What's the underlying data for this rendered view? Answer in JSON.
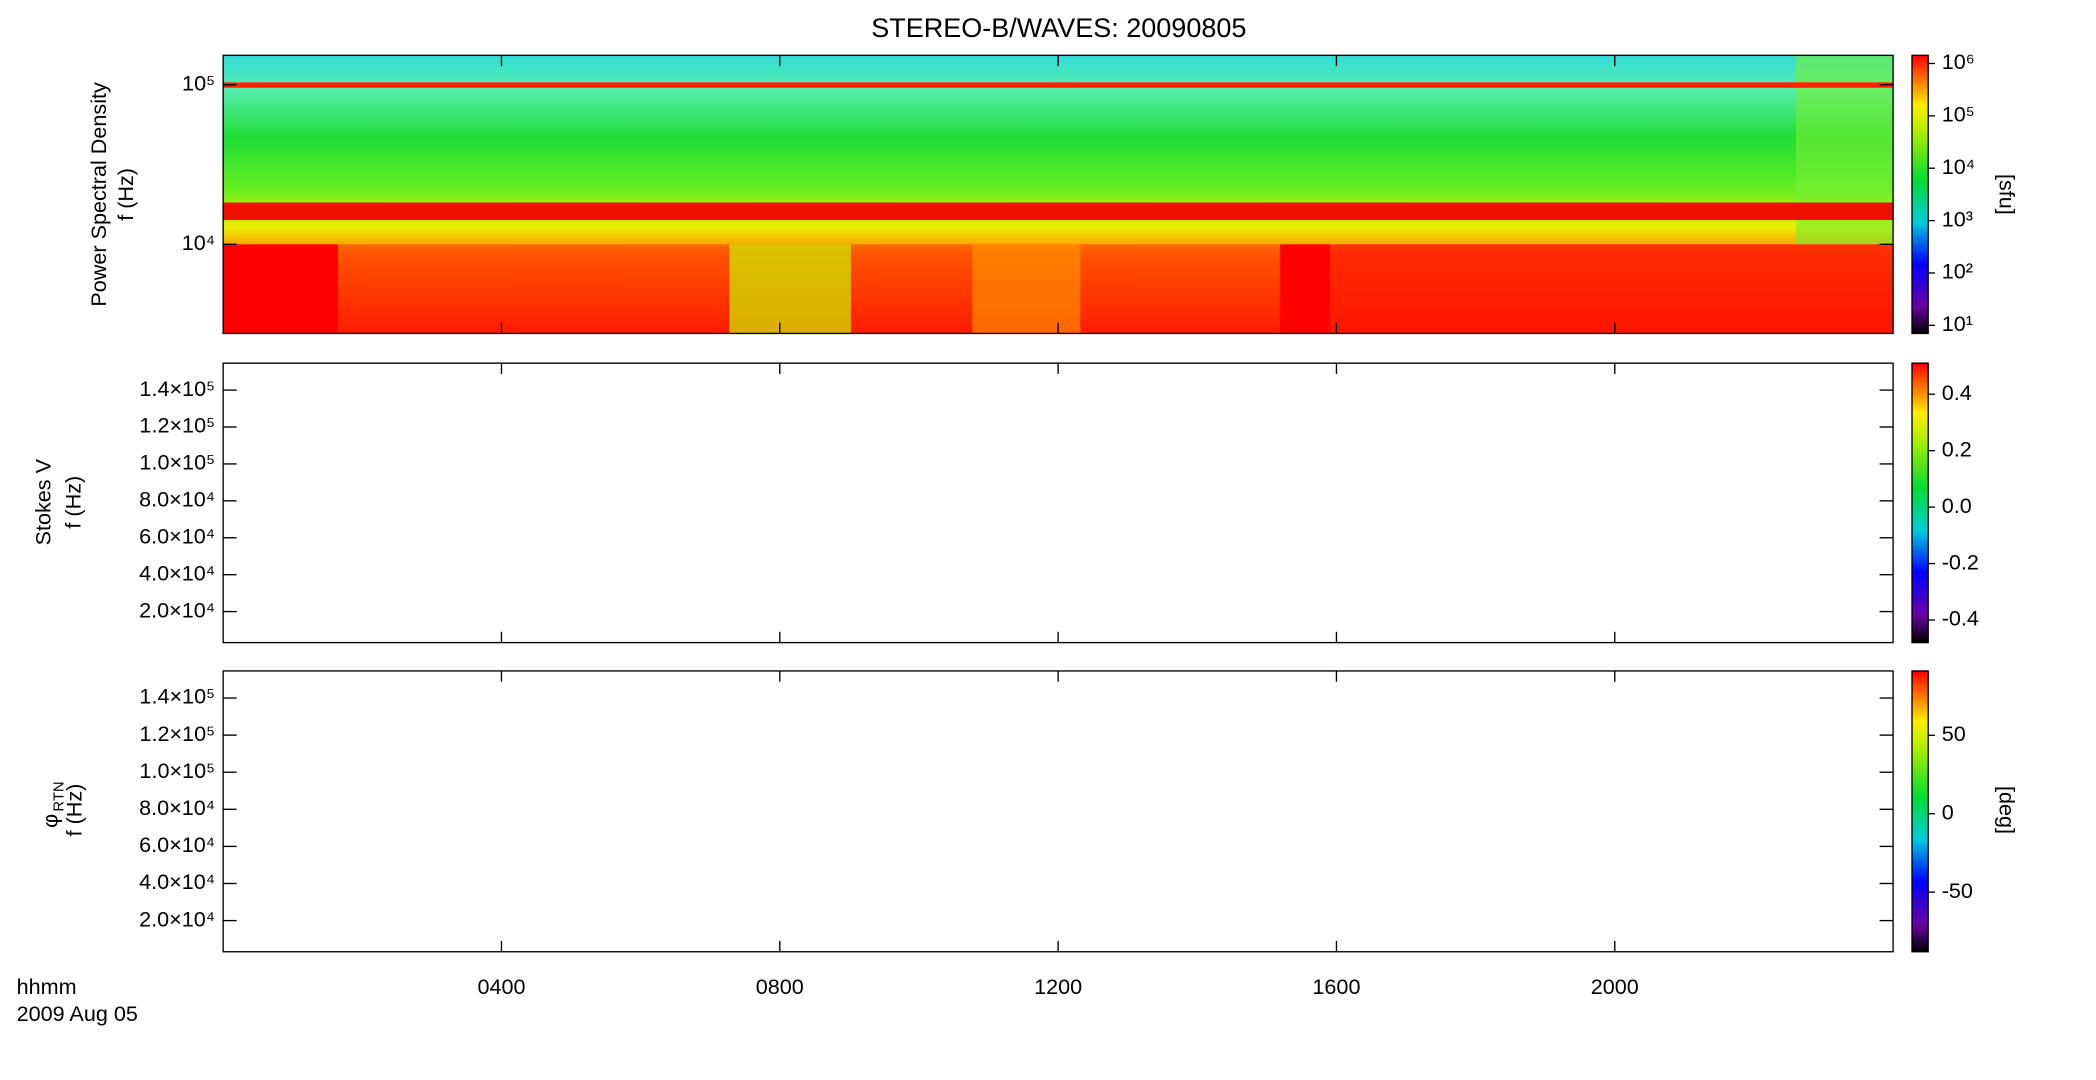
{
  "chart_data": {
    "type": "spectrogram",
    "title": "STEREO-B/WAVES: 20090805",
    "x_label": "hhmm",
    "date": "2009 Aug 05",
    "xlim": [
      0,
      24
    ],
    "xticks": [
      {
        "value": 4,
        "label": "0400"
      },
      {
        "value": 8,
        "label": "0800"
      },
      {
        "value": 12,
        "label": "1200"
      },
      {
        "value": 16,
        "label": "1600"
      },
      {
        "value": 20,
        "label": "2000"
      }
    ],
    "panels": [
      {
        "ylabel": "Power Spectral Density",
        "ylabel2": "f (Hz)",
        "yscale": "log",
        "ylim": [
          2760,
          153000
        ],
        "yticks": [
          {
            "value": 10000,
            "label": "10⁴"
          },
          {
            "value": 100000,
            "label": "10⁵"
          }
        ],
        "colorbar": {
          "scale": "log",
          "lim": [
            7,
            1430000
          ],
          "label": "[sfu]",
          "ticks": [
            {
              "value": 10,
              "label": "10¹"
            },
            {
              "value": 100,
              "label": "10²"
            },
            {
              "value": 1000,
              "label": "10³"
            },
            {
              "value": 10000,
              "label": "10⁴"
            },
            {
              "value": 100000,
              "label": "10⁵"
            },
            {
              "value": 1000000,
              "label": "10⁶"
            }
          ]
        }
      },
      {
        "ylabel": "Stokes V",
        "ylabel2": "f (Hz)",
        "yscale": "linear",
        "ylim": [
          3200,
          154600
        ],
        "yticks": [
          {
            "value": 20000,
            "label": "2.0×10⁴"
          },
          {
            "value": 40000,
            "label": "4.0×10⁴"
          },
          {
            "value": 60000,
            "label": "6.0×10⁴"
          },
          {
            "value": 80000,
            "label": "8.0×10⁴"
          },
          {
            "value": 100000,
            "label": "1.0×10⁵"
          },
          {
            "value": 120000,
            "label": "1.2×10⁵"
          },
          {
            "value": 140000,
            "label": "1.4×10⁵"
          }
        ],
        "colorbar": {
          "scale": "linear",
          "lim": [
            -0.48,
            0.51
          ],
          "ticks": [
            -0.4,
            -0.2,
            {
              "value": 0,
              "label": "0.0"
            },
            0.2,
            0.4
          ]
        }
      },
      {
        "ylabel": "φ",
        "ylabel_sub": "RTN",
        "ylabel2": "f (Hz)",
        "yscale": "linear",
        "ylim": [
          3200,
          154600
        ],
        "yticks": [
          {
            "value": 20000,
            "label": "2.0×10⁴"
          },
          {
            "value": 40000,
            "label": "4.0×10⁴"
          },
          {
            "value": 60000,
            "label": "6.0×10⁴"
          },
          {
            "value": 80000,
            "label": "8.0×10⁴"
          },
          {
            "value": 100000,
            "label": "1.0×10⁵"
          },
          {
            "value": 120000,
            "label": "1.2×10⁵"
          },
          {
            "value": 140000,
            "label": "1.4×10⁵"
          }
        ],
        "colorbar": {
          "scale": "linear",
          "lim": [
            -88,
            91
          ],
          "label": "[deg]",
          "ticks": [
            -50,
            0,
            50
          ]
        }
      }
    ]
  }
}
